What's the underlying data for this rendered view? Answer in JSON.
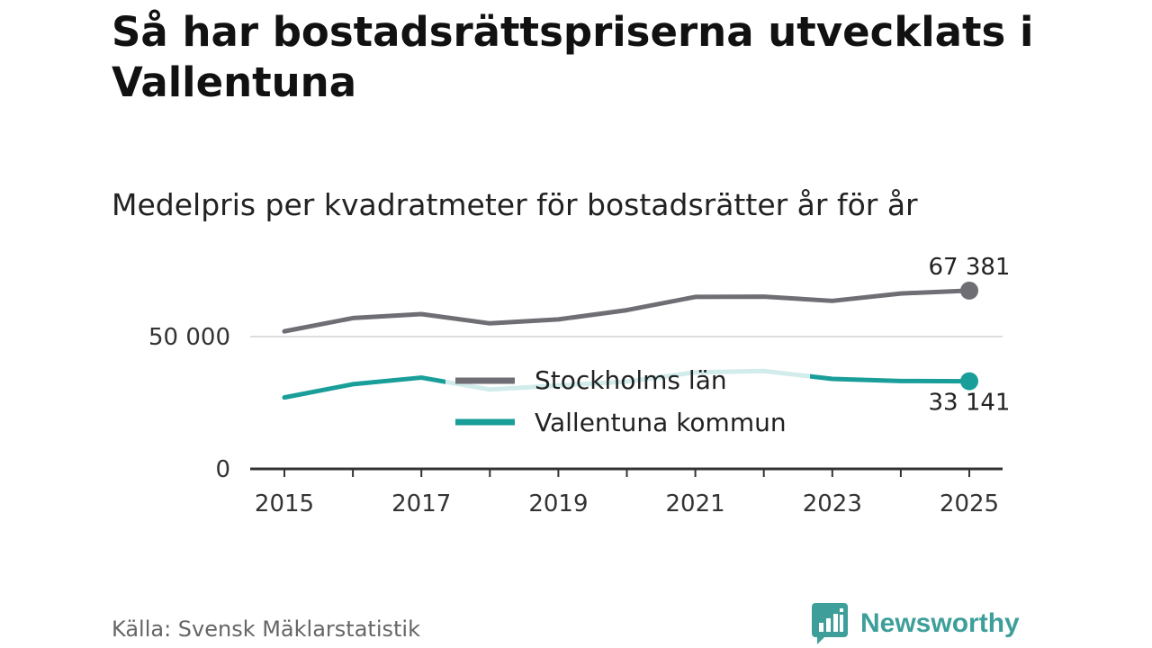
{
  "header": {
    "title": "Så har bostadsrättspriserna utvecklats i Vallentuna",
    "subtitle": "Medelpris per kvadratmeter för bostadsrätter år för år"
  },
  "footer": {
    "source": "Källa: Svensk Mäklarstatistik",
    "brand": "Newsworthy"
  },
  "colors": {
    "stockholm": "#6f6e74",
    "vallentuna": "#1a9e9a",
    "grid": "#dddddd",
    "axis": "#333333",
    "brand": "#3e9f9a"
  },
  "chart_data": {
    "type": "line",
    "title": "Medelpris per kvadratmeter för bostadsrätter år för år",
    "xlabel": "",
    "ylabel": "",
    "x": [
      2015,
      2016,
      2017,
      2018,
      2019,
      2020,
      2021,
      2022,
      2023,
      2024,
      2025
    ],
    "xticks": [
      "2015",
      "2017",
      "2019",
      "2021",
      "2023",
      "2025"
    ],
    "yticks": [
      {
        "value": 0,
        "label": "0"
      },
      {
        "value": 50000,
        "label": "50 000"
      }
    ],
    "ylim": [
      0,
      75000
    ],
    "series": [
      {
        "name": "Stockholms län",
        "color": "#6f6e74",
        "values": [
          52000,
          57000,
          58500,
          55000,
          56500,
          60000,
          65000,
          65100,
          63500,
          66300,
          67381
        ],
        "end_label": "67 381"
      },
      {
        "name": "Vallentuna kommun",
        "color": "#1a9e9a",
        "values": [
          27000,
          32000,
          34500,
          30000,
          31500,
          33000,
          36500,
          37000,
          34000,
          33200,
          33141
        ],
        "end_label": "33 141"
      }
    ],
    "legend": "center"
  }
}
